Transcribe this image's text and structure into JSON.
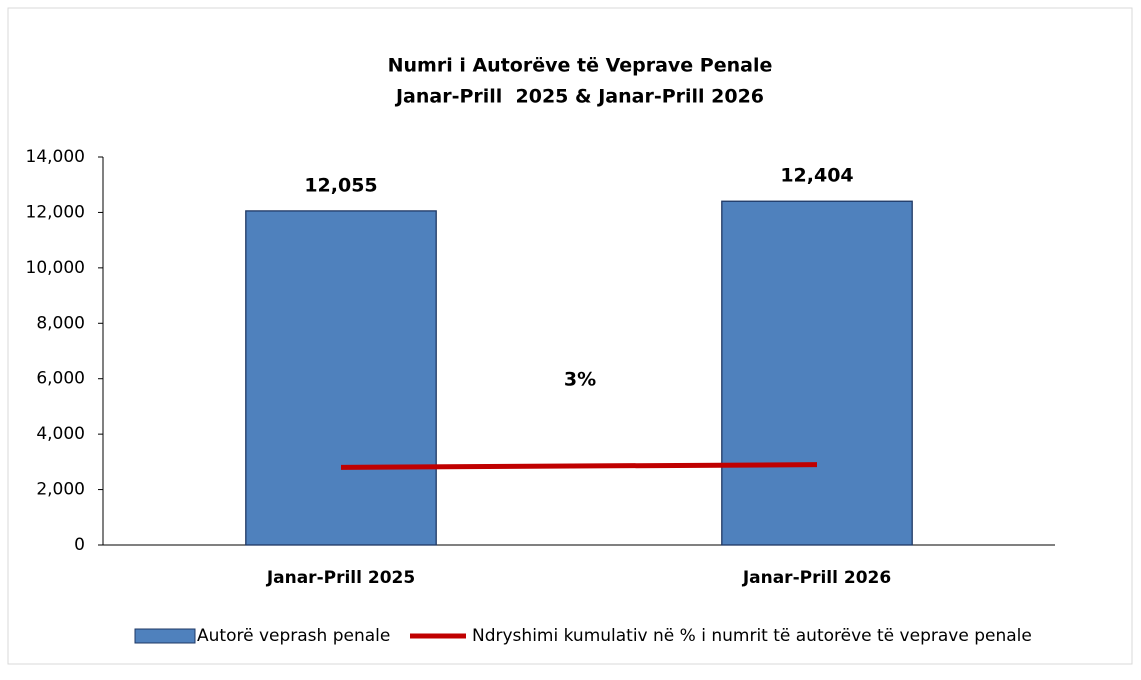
{
  "chart_data": {
    "type": "bar",
    "title": "Numri i Autorëve të Veprave Penale",
    "subtitle": "Janar-Prill  2025 & Janar-Prill 2026",
    "categories": [
      "Janar-Prill 2025",
      "Janar-Prill 2026"
    ],
    "series": [
      {
        "name": "Autorë veprash penale",
        "type": "bar",
        "color": "#4f81bd",
        "values": [
          12055,
          12404
        ],
        "value_labels": [
          "12,055",
          "12,404"
        ]
      },
      {
        "name": "Ndryshimi kumulativ në % i numrit të autorëve të veprave penale",
        "type": "line",
        "color": "#c00000",
        "values": [
          2800,
          2900
        ]
      }
    ],
    "annotations": [
      "3%"
    ],
    "ylim": [
      0,
      14000
    ],
    "yticks": [
      0,
      {
        "value": 2000,
        "label": "2,000"
      },
      {
        "value": 4000,
        "label": "4,000"
      },
      {
        "value": 6000,
        "label": "6,000"
      },
      {
        "value": 8000,
        "label": "8,000"
      },
      {
        "value": 10000,
        "label": "10,000"
      },
      {
        "value": 12000,
        "label": "12,000"
      },
      {
        "value": 14000,
        "label": "14,000"
      }
    ],
    "grid": false,
    "legend": "bottom"
  }
}
